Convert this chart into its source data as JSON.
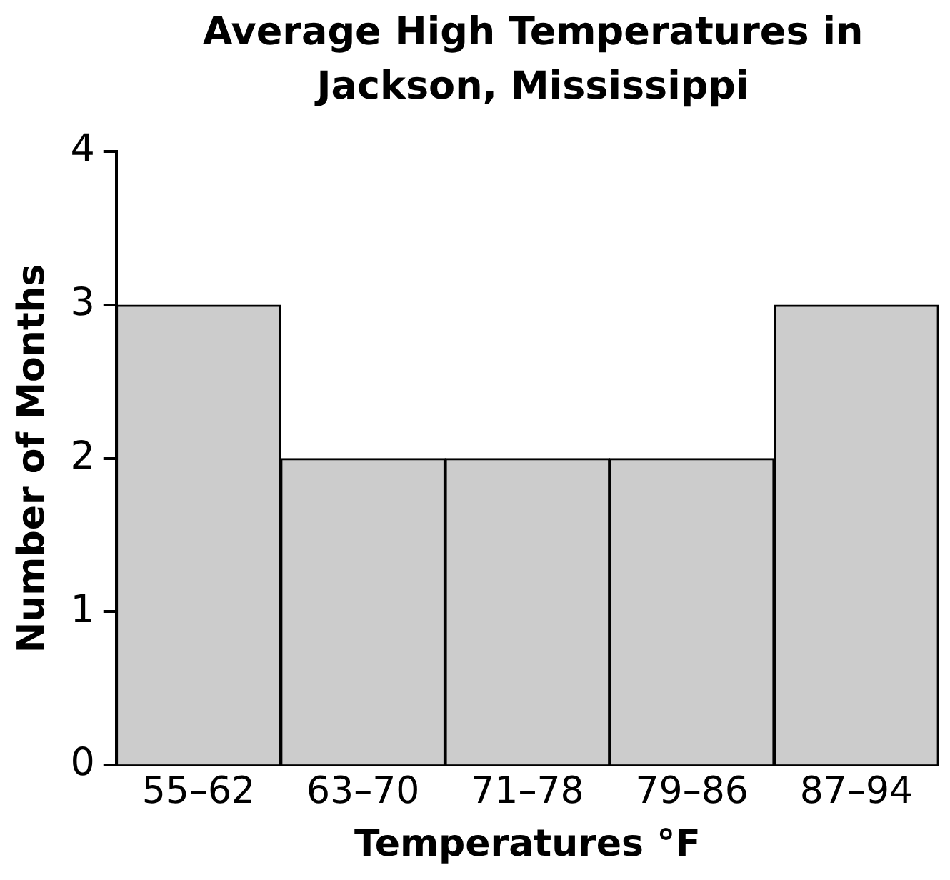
{
  "chart_data": {
    "type": "bar",
    "title": "Average High Temperatures in Jackson, Mississippi",
    "xlabel": "Temperatures °F",
    "ylabel": "Number of Months",
    "categories": [
      "55–62",
      "63–70",
      "71–78",
      "79–86",
      "87–94"
    ],
    "values": [
      3,
      2,
      2,
      2,
      3
    ],
    "color": "#cccccc",
    "ylim": [
      0,
      4
    ],
    "yticks": [
      0,
      1,
      2,
      3,
      4
    ],
    "grid": false,
    "legend": false
  }
}
